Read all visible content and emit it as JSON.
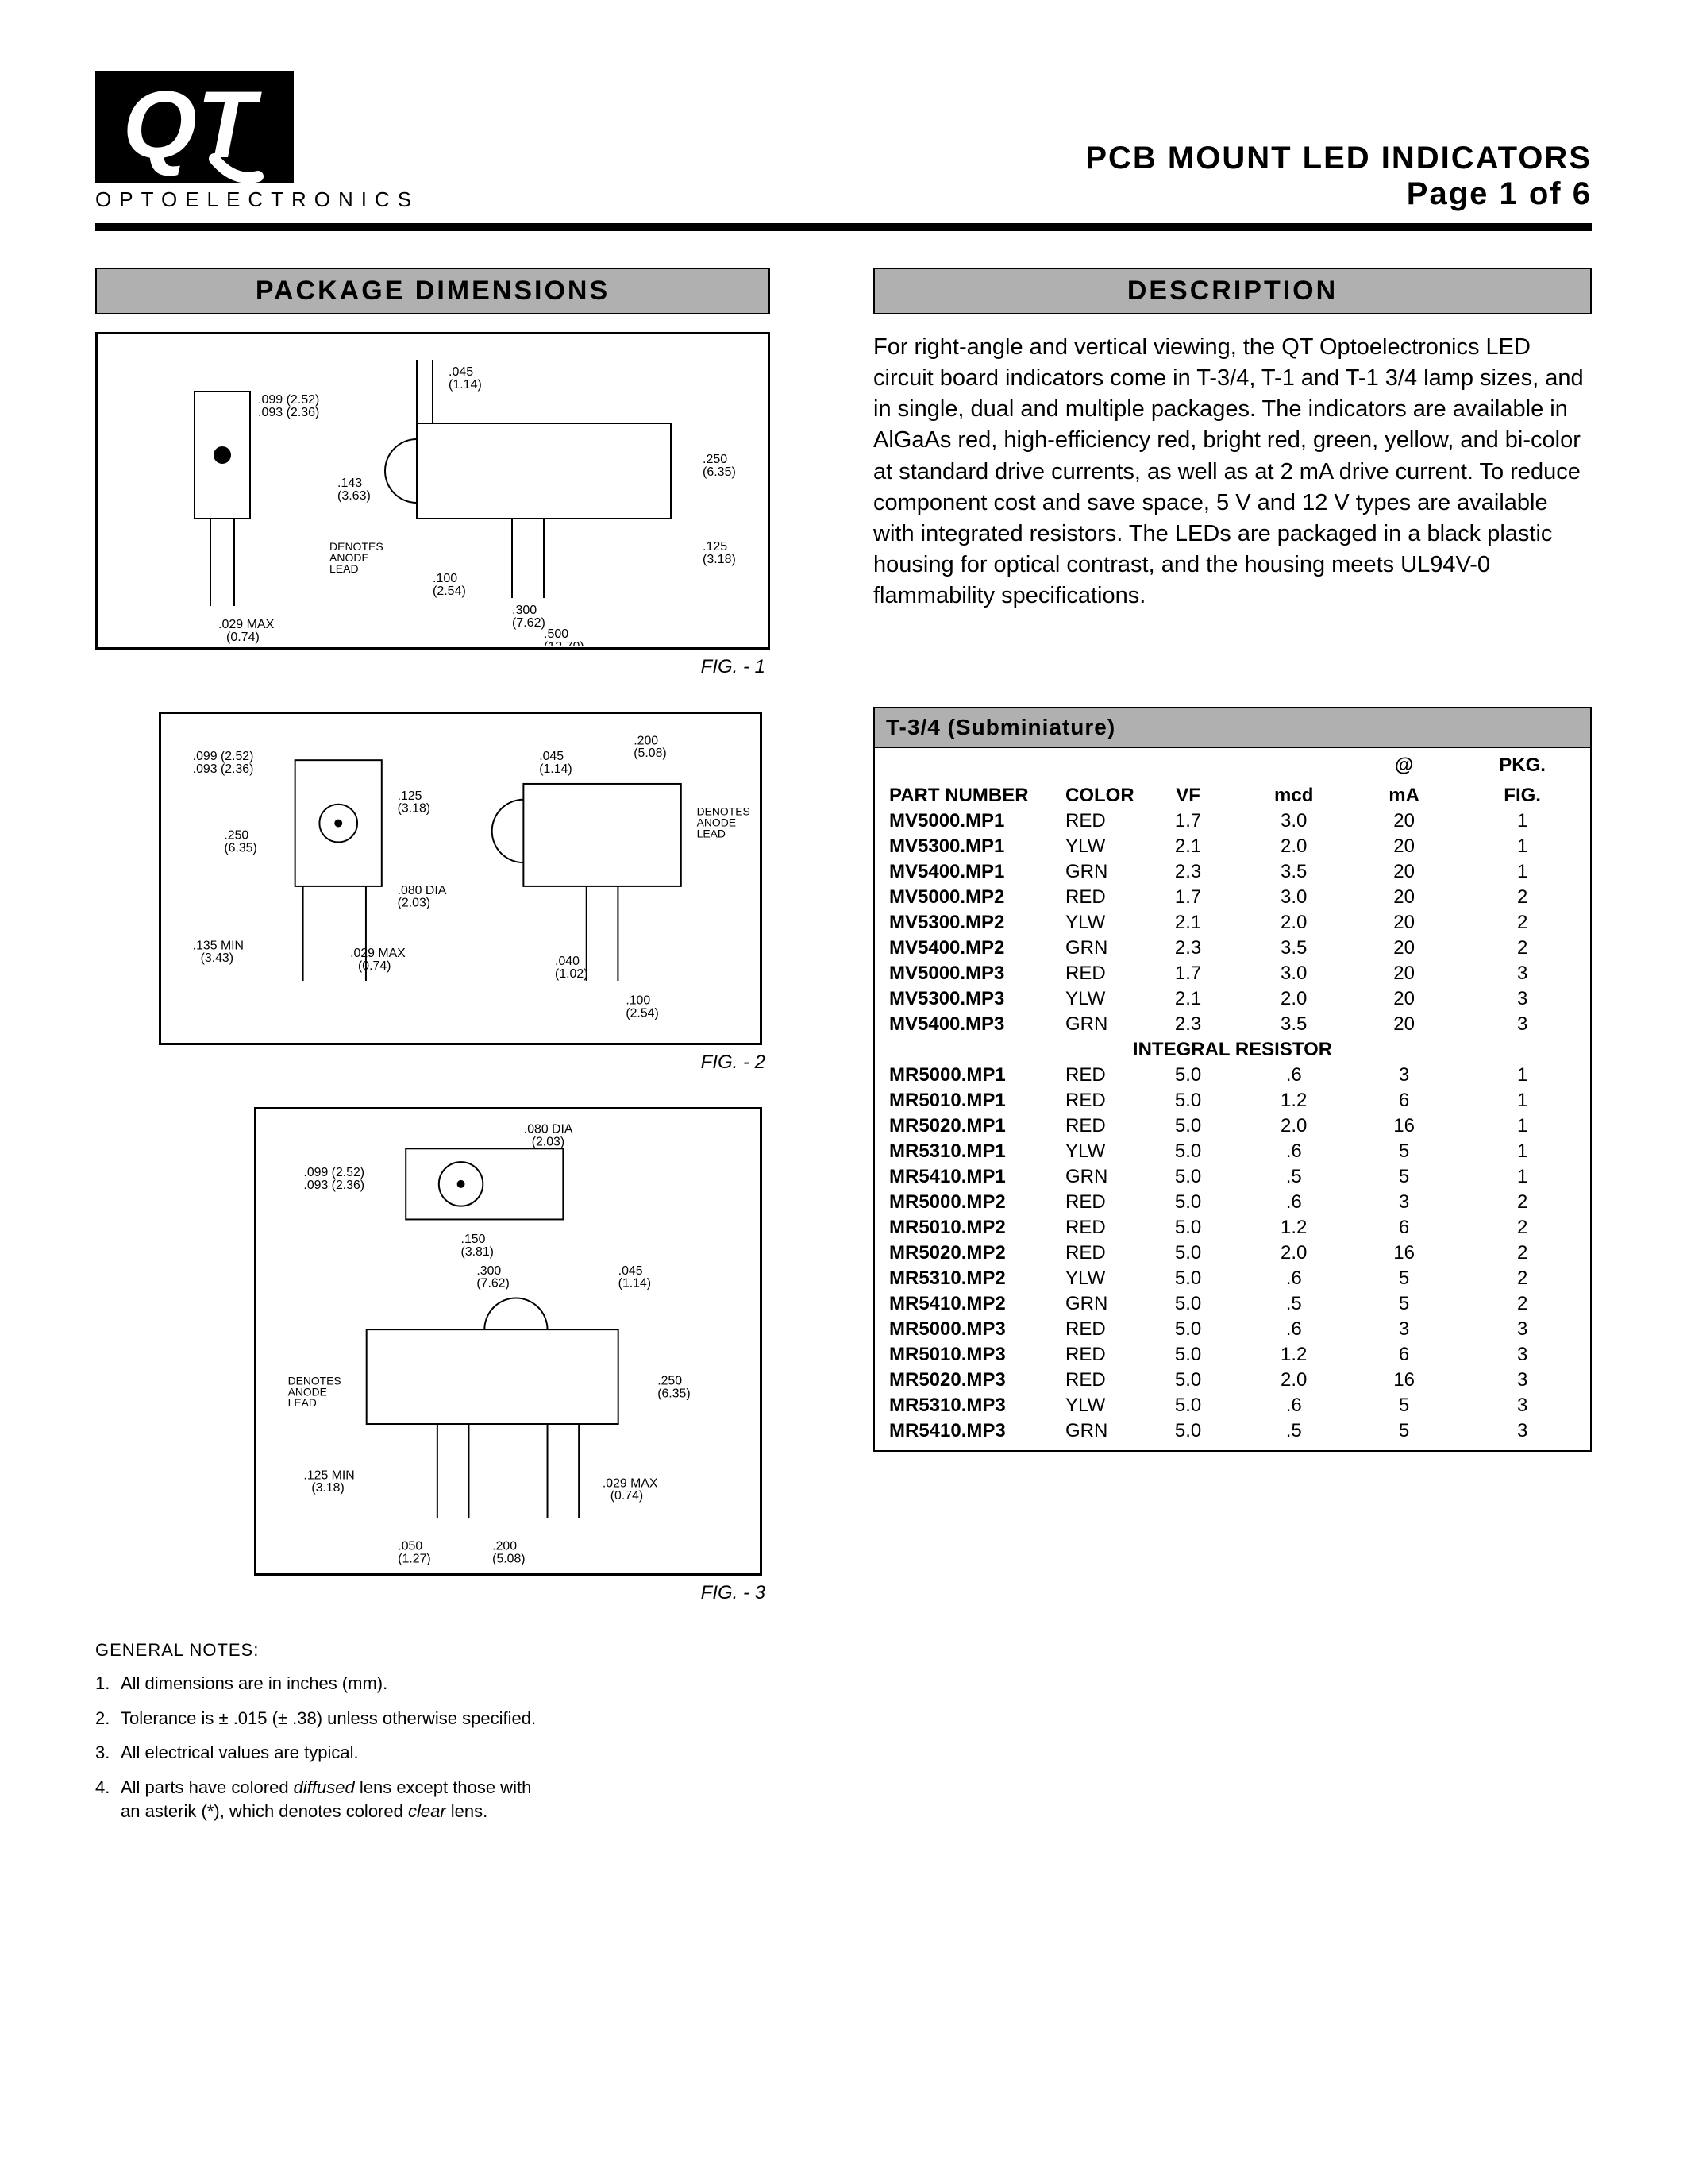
{
  "logo": {
    "letters": "QT",
    "sub": "OPTOELECTRONICS"
  },
  "header": {
    "title": "PCB MOUNT LED INDICATORS",
    "page": "Page 1 of 6"
  },
  "sections": {
    "left": "PACKAGE DIMENSIONS",
    "right": "DESCRIPTION"
  },
  "figures": {
    "c1": "FIG. - 1",
    "c2": "FIG. - 2",
    "c3": "FIG. - 3"
  },
  "notes": {
    "title": "GENERAL NOTES:",
    "items": [
      "All dimensions are in inches (mm).",
      "Tolerance is ± .015 (± .38) unless otherwise specified.",
      "All electrical values are typical.",
      "All parts have colored diffused lens except those with an asterik (*), which denotes colored clear lens."
    ]
  },
  "description": "For right-angle and vertical viewing, the QT Optoelectronics LED circuit board indicators come in T-3/4, T-1 and T-1 3/4 lamp sizes, and in single, dual and multiple packages. The indicators are available in AlGaAs red, high-efficiency red, bright red, green, yellow, and bi-color at standard drive currents, as well as at 2 mA drive current. To reduce component cost and save space, 5 V and 12 V types are available with integrated resistors. The LEDs are packaged in a black plastic housing for optical contrast, and the housing meets UL94V-0 flammability specifications.",
  "table": {
    "title": "T-3/4 (Subminiature)",
    "headers": {
      "pn": "PART NUMBER",
      "color": "COLOR",
      "vf": "VF",
      "mcd": "mcd",
      "at": "@",
      "ma": "mA",
      "pkg": "PKG.",
      "fig": "FIG."
    },
    "groups": [
      {
        "label": null,
        "rows": [
          {
            "pn": "MV5000.MP1",
            "color": "RED",
            "vf": "1.7",
            "mcd": "3.0",
            "ma": "20",
            "fig": "1"
          },
          {
            "pn": "MV5300.MP1",
            "color": "YLW",
            "vf": "2.1",
            "mcd": "2.0",
            "ma": "20",
            "fig": "1"
          },
          {
            "pn": "MV5400.MP1",
            "color": "GRN",
            "vf": "2.3",
            "mcd": "3.5",
            "ma": "20",
            "fig": "1"
          }
        ]
      },
      {
        "label": null,
        "rows": [
          {
            "pn": "MV5000.MP2",
            "color": "RED",
            "vf": "1.7",
            "mcd": "3.0",
            "ma": "20",
            "fig": "2"
          },
          {
            "pn": "MV5300.MP2",
            "color": "YLW",
            "vf": "2.1",
            "mcd": "2.0",
            "ma": "20",
            "fig": "2"
          },
          {
            "pn": "MV5400.MP2",
            "color": "GRN",
            "vf": "2.3",
            "mcd": "3.5",
            "ma": "20",
            "fig": "2"
          }
        ]
      },
      {
        "label": null,
        "rows": [
          {
            "pn": "MV5000.MP3",
            "color": "RED",
            "vf": "1.7",
            "mcd": "3.0",
            "ma": "20",
            "fig": "3"
          },
          {
            "pn": "MV5300.MP3",
            "color": "YLW",
            "vf": "2.1",
            "mcd": "2.0",
            "ma": "20",
            "fig": "3"
          },
          {
            "pn": "MV5400.MP3",
            "color": "GRN",
            "vf": "2.3",
            "mcd": "3.5",
            "ma": "20",
            "fig": "3"
          }
        ]
      },
      {
        "label": "INTEGRAL RESISTOR",
        "rows": [
          {
            "pn": "MR5000.MP1",
            "color": "RED",
            "vf": "5.0",
            "mcd": ".6",
            "ma": "3",
            "fig": "1"
          },
          {
            "pn": "MR5010.MP1",
            "color": "RED",
            "vf": "5.0",
            "mcd": "1.2",
            "ma": "6",
            "fig": "1"
          },
          {
            "pn": "MR5020.MP1",
            "color": "RED",
            "vf": "5.0",
            "mcd": "2.0",
            "ma": "16",
            "fig": "1"
          },
          {
            "pn": "MR5310.MP1",
            "color": "YLW",
            "vf": "5.0",
            "mcd": ".6",
            "ma": "5",
            "fig": "1"
          },
          {
            "pn": "MR5410.MP1",
            "color": "GRN",
            "vf": "5.0",
            "mcd": ".5",
            "ma": "5",
            "fig": "1"
          }
        ]
      },
      {
        "label": null,
        "rows": [
          {
            "pn": "MR5000.MP2",
            "color": "RED",
            "vf": "5.0",
            "mcd": ".6",
            "ma": "3",
            "fig": "2"
          },
          {
            "pn": "MR5010.MP2",
            "color": "RED",
            "vf": "5.0",
            "mcd": "1.2",
            "ma": "6",
            "fig": "2"
          },
          {
            "pn": "MR5020.MP2",
            "color": "RED",
            "vf": "5.0",
            "mcd": "2.0",
            "ma": "16",
            "fig": "2"
          },
          {
            "pn": "MR5310.MP2",
            "color": "YLW",
            "vf": "5.0",
            "mcd": ".6",
            "ma": "5",
            "fig": "2"
          },
          {
            "pn": "MR5410.MP2",
            "color": "GRN",
            "vf": "5.0",
            "mcd": ".5",
            "ma": "5",
            "fig": "2"
          }
        ]
      },
      {
        "label": null,
        "rows": [
          {
            "pn": "MR5000.MP3",
            "color": "RED",
            "vf": "5.0",
            "mcd": ".6",
            "ma": "3",
            "fig": "3"
          },
          {
            "pn": "MR5010.MP3",
            "color": "RED",
            "vf": "5.0",
            "mcd": "1.2",
            "ma": "6",
            "fig": "3"
          },
          {
            "pn": "MR5020.MP3",
            "color": "RED",
            "vf": "5.0",
            "mcd": "2.0",
            "ma": "16",
            "fig": "3"
          },
          {
            "pn": "MR5310.MP3",
            "color": "YLW",
            "vf": "5.0",
            "mcd": ".6",
            "ma": "5",
            "fig": "3"
          },
          {
            "pn": "MR5410.MP3",
            "color": "GRN",
            "vf": "5.0",
            "mcd": ".5",
            "ma": "5",
            "fig": "3"
          }
        ]
      }
    ]
  }
}
